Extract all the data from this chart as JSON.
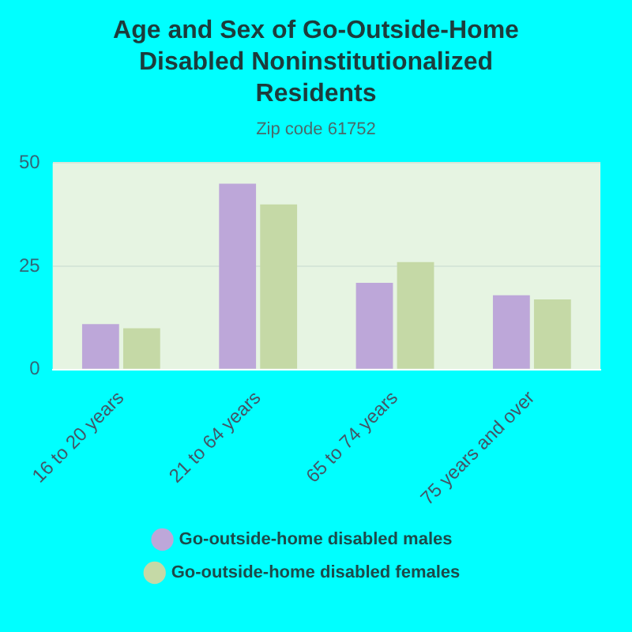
{
  "chart_data": {
    "type": "bar",
    "title": "Age and Sex of Go-Outside-Home Disabled Noninstitutionalized Residents",
    "subtitle": "Zip code 61752",
    "categories": [
      "16 to 20 years",
      "21 to 64 years",
      "65 to 74 years",
      "75 years and over"
    ],
    "series": [
      {
        "name": "Go-outside-home disabled males",
        "color": "#bda7d9",
        "values": [
          11,
          45,
          21,
          18
        ]
      },
      {
        "name": "Go-outside-home disabled females",
        "color": "#c5d9a6",
        "values": [
          10,
          40,
          26,
          17
        ]
      }
    ],
    "ylim": [
      0,
      50
    ],
    "yticks": [
      0,
      25,
      50
    ],
    "grid": "y",
    "legend": "bottom"
  }
}
